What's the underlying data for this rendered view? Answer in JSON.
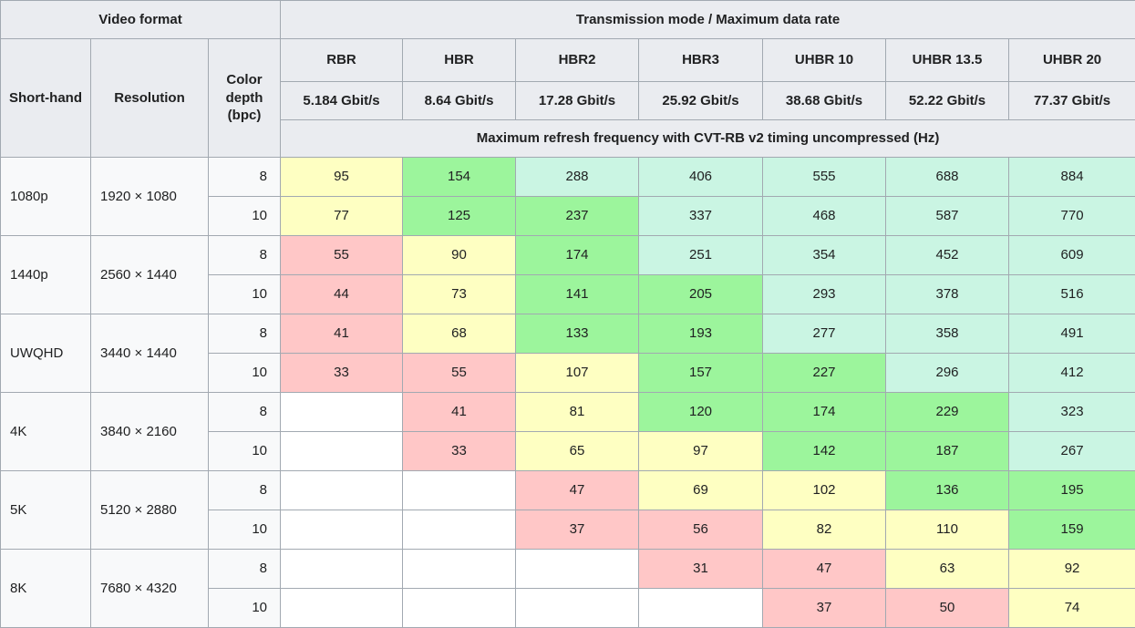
{
  "table": {
    "labels": {
      "video_format": "Video format",
      "transmission": "Transmission mode / Maximum data rate",
      "shorthand": "Short-hand",
      "resolution": "Resolution",
      "color_depth": "Color depth (bpc)",
      "band": "Maximum refresh frequency with CVT-RB v2 timing uncompressed (Hz)"
    },
    "modes": [
      {
        "name": "RBR",
        "rate": "5.184 Gbit/s"
      },
      {
        "name": "HBR",
        "rate": "8.64 Gbit/s"
      },
      {
        "name": "HBR2",
        "rate": "17.28 Gbit/s"
      },
      {
        "name": "HBR3",
        "rate": "25.92 Gbit/s"
      },
      {
        "name": "UHBR 10",
        "rate": "38.68 Gbit/s"
      },
      {
        "name": "UHBR 13.5",
        "rate": "52.22 Gbit/s"
      },
      {
        "name": "UHBR 20",
        "rate": "77.37 Gbit/s"
      }
    ],
    "cell_colors": {
      "blank": "#ffffff",
      "red": "#ffc7c7",
      "yellow": "#feffc2",
      "green": "#9cf59c",
      "mint": "#caf5e3"
    },
    "theme_colors": {
      "header_bg": "#eaecf0",
      "rowhead_bg": "#f8f9fa",
      "border": "#a2a9b1",
      "text": "#202122"
    },
    "groups": [
      {
        "shorthand": "1080p",
        "resolution": "1920 × 1080",
        "rows": [
          {
            "bpc": "8",
            "values": [
              "95",
              "154",
              "288",
              "406",
              "555",
              "688",
              "884"
            ],
            "colors": [
              "yellow",
              "green",
              "mint",
              "mint",
              "mint",
              "mint",
              "mint"
            ]
          },
          {
            "bpc": "10",
            "values": [
              "77",
              "125",
              "237",
              "337",
              "468",
              "587",
              "770"
            ],
            "colors": [
              "yellow",
              "green",
              "green",
              "mint",
              "mint",
              "mint",
              "mint"
            ]
          }
        ]
      },
      {
        "shorthand": "1440p",
        "resolution": "2560 × 1440",
        "rows": [
          {
            "bpc": "8",
            "values": [
              "55",
              "90",
              "174",
              "251",
              "354",
              "452",
              "609"
            ],
            "colors": [
              "red",
              "yellow",
              "green",
              "mint",
              "mint",
              "mint",
              "mint"
            ]
          },
          {
            "bpc": "10",
            "values": [
              "44",
              "73",
              "141",
              "205",
              "293",
              "378",
              "516"
            ],
            "colors": [
              "red",
              "yellow",
              "green",
              "green",
              "mint",
              "mint",
              "mint"
            ]
          }
        ]
      },
      {
        "shorthand": "UWQHD",
        "resolution": "3440 × 1440",
        "rows": [
          {
            "bpc": "8",
            "values": [
              "41",
              "68",
              "133",
              "193",
              "277",
              "358",
              "491"
            ],
            "colors": [
              "red",
              "yellow",
              "green",
              "green",
              "mint",
              "mint",
              "mint"
            ]
          },
          {
            "bpc": "10",
            "values": [
              "33",
              "55",
              "107",
              "157",
              "227",
              "296",
              "412"
            ],
            "colors": [
              "red",
              "red",
              "yellow",
              "green",
              "green",
              "mint",
              "mint"
            ]
          }
        ]
      },
      {
        "shorthand": "4K",
        "resolution": "3840 × 2160",
        "rows": [
          {
            "bpc": "8",
            "values": [
              "",
              "41",
              "81",
              "120",
              "174",
              "229",
              "323"
            ],
            "colors": [
              "blank",
              "red",
              "yellow",
              "green",
              "green",
              "green",
              "mint"
            ]
          },
          {
            "bpc": "10",
            "values": [
              "",
              "33",
              "65",
              "97",
              "142",
              "187",
              "267"
            ],
            "colors": [
              "blank",
              "red",
              "yellow",
              "yellow",
              "green",
              "green",
              "mint"
            ]
          }
        ]
      },
      {
        "shorthand": "5K",
        "resolution": "5120 × 2880",
        "rows": [
          {
            "bpc": "8",
            "values": [
              "",
              "",
              "47",
              "69",
              "102",
              "136",
              "195"
            ],
            "colors": [
              "blank",
              "blank",
              "red",
              "yellow",
              "yellow",
              "green",
              "green"
            ]
          },
          {
            "bpc": "10",
            "values": [
              "",
              "",
              "37",
              "56",
              "82",
              "110",
              "159"
            ],
            "colors": [
              "blank",
              "blank",
              "red",
              "red",
              "yellow",
              "yellow",
              "green"
            ]
          }
        ]
      },
      {
        "shorthand": "8K",
        "resolution": "7680 × 4320",
        "rows": [
          {
            "bpc": "8",
            "values": [
              "",
              "",
              "",
              "31",
              "47",
              "63",
              "92"
            ],
            "colors": [
              "blank",
              "blank",
              "blank",
              "red",
              "red",
              "yellow",
              "yellow"
            ]
          },
          {
            "bpc": "10",
            "values": [
              "",
              "",
              "",
              "",
              "37",
              "50",
              "74"
            ],
            "colors": [
              "blank",
              "blank",
              "blank",
              "blank",
              "red",
              "red",
              "yellow"
            ]
          }
        ]
      }
    ]
  },
  "chart_data": {
    "type": "table",
    "title": "Transmission mode / Maximum data rate",
    "subtitle": "Maximum refresh frequency with CVT-RB v2 timing uncompressed (Hz)",
    "columns": [
      "Short-hand",
      "Resolution",
      "Color depth (bpc)",
      "RBR 5.184 Gbit/s",
      "HBR 8.64 Gbit/s",
      "HBR2 17.28 Gbit/s",
      "HBR3 25.92 Gbit/s",
      "UHBR 10 38.68 Gbit/s",
      "UHBR 13.5 52.22 Gbit/s",
      "UHBR 20 77.37 Gbit/s"
    ],
    "rows": [
      [
        "1080p",
        "1920 × 1080",
        8,
        95,
        154,
        288,
        406,
        555,
        688,
        884
      ],
      [
        "1080p",
        "1920 × 1080",
        10,
        77,
        125,
        237,
        337,
        468,
        587,
        770
      ],
      [
        "1440p",
        "2560 × 1440",
        8,
        55,
        90,
        174,
        251,
        354,
        452,
        609
      ],
      [
        "1440p",
        "2560 × 1440",
        10,
        44,
        73,
        141,
        205,
        293,
        378,
        516
      ],
      [
        "UWQHD",
        "3440 × 1440",
        8,
        41,
        68,
        133,
        193,
        277,
        358,
        491
      ],
      [
        "UWQHD",
        "3440 × 1440",
        10,
        33,
        55,
        107,
        157,
        227,
        296,
        412
      ],
      [
        "4K",
        "3840 × 2160",
        8,
        null,
        41,
        81,
        120,
        174,
        229,
        323
      ],
      [
        "4K",
        "3840 × 2160",
        10,
        null,
        33,
        65,
        97,
        142,
        187,
        267
      ],
      [
        "5K",
        "5120 × 2880",
        8,
        null,
        null,
        47,
        69,
        102,
        136,
        195
      ],
      [
        "5K",
        "5120 × 2880",
        10,
        null,
        null,
        37,
        56,
        82,
        110,
        159
      ],
      [
        "8K",
        "7680 × 4320",
        8,
        null,
        null,
        null,
        31,
        47,
        63,
        92
      ],
      [
        "8K",
        "7680 × 4320",
        10,
        null,
        null,
        null,
        null,
        37,
        50,
        74
      ]
    ],
    "cell_color_coding": {
      "#ffc7c7": "red: lowest refresh band",
      "#feffc2": "yellow: mid refresh band",
      "#9cf59c": "green: high refresh band",
      "#caf5e3": "mint: highest refresh band (>240 Hz)",
      "#ffffff": "blank: not supported"
    },
    "layout_hints": {
      "grid": true,
      "legend": false
    }
  }
}
